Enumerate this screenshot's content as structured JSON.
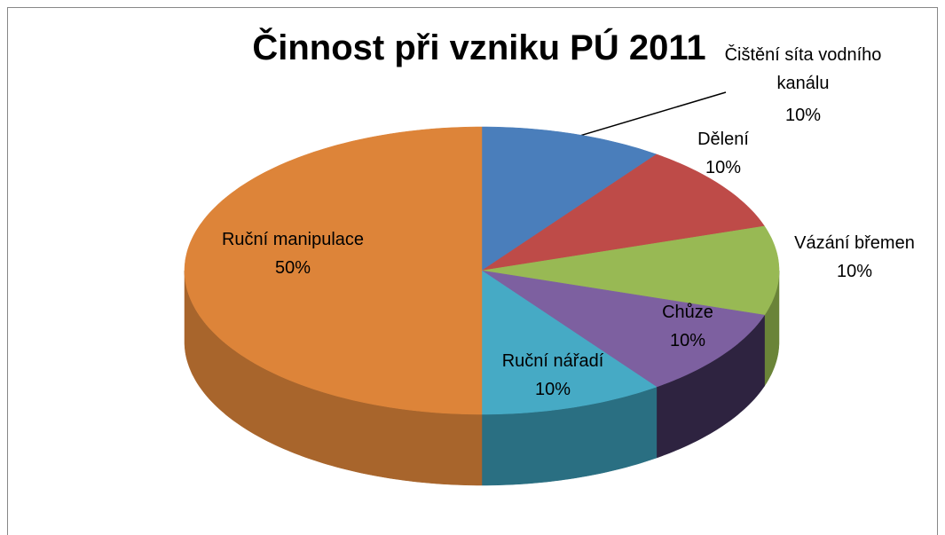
{
  "chart_data": {
    "type": "pie",
    "title": "Činnost při vzniku PÚ 2011",
    "categories": [
      "Čištění síta vodního kanálu",
      "Dělení",
      "Vázání břemen",
      "Chůze",
      "Ruční nářadí",
      "Ruční manipulace"
    ],
    "values": [
      10,
      10,
      10,
      10,
      10,
      50
    ],
    "value_labels": [
      "10%",
      "10%",
      "10%",
      "10%",
      "10%",
      "50%"
    ],
    "colors": [
      "#4a7ebb",
      "#be4b48",
      "#98b954",
      "#7d60a0",
      "#46aac5",
      "#dd8439"
    ],
    "side_colors": [
      "#2f5585",
      "#84302e",
      "#6a8438",
      "#2e2340",
      "#2a6f82",
      "#a8652c"
    ]
  }
}
